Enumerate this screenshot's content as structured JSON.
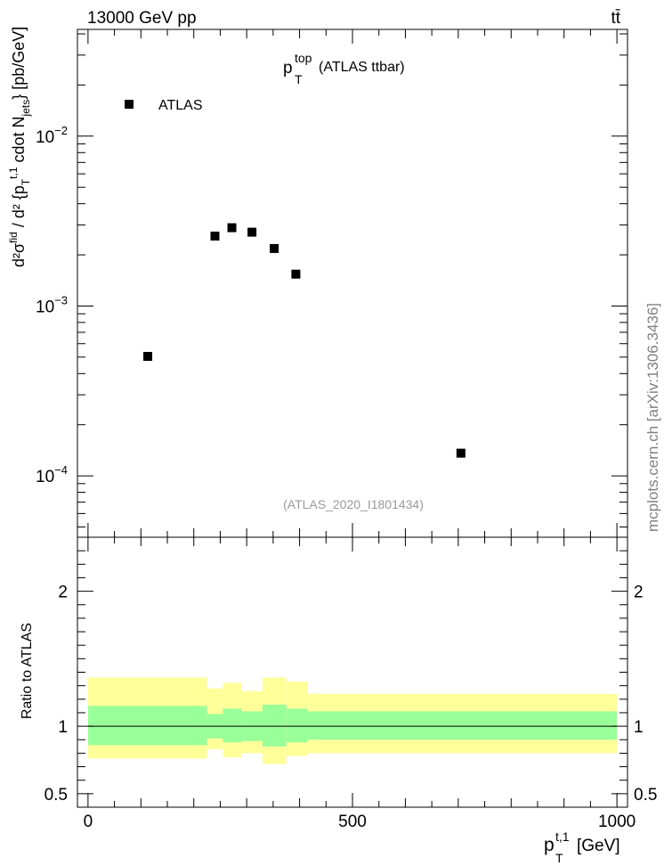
{
  "header": {
    "energy_label": "13000 GeV pp",
    "process_label": "tt̄"
  },
  "side_label": "mcplots.cern.ch [arXiv:1306.3436]",
  "chart_data": [
    {
      "type": "scatter",
      "panel": "main",
      "title_main": "p",
      "title_sup": "top",
      "title_sub": "T",
      "title_rest": "(ATLAS ttbar)",
      "analysis_id": "(ATLAS_2020_I1801434)",
      "ylabel": "d²σ^fid / d²{p_T^{t,1} cdot N_jets} [pb/GeV]",
      "y_scale": "log",
      "ylim": [
        4.35e-05,
        0.0425
      ],
      "xlim": [
        -20,
        1020
      ],
      "y_ticks": [
        {
          "value": 0.01,
          "base": "10",
          "exp": "−2"
        },
        {
          "value": 0.001,
          "base": "10",
          "exp": "−3"
        },
        {
          "value": 0.0001,
          "base": "10",
          "exp": "−4"
        }
      ],
      "legend": {
        "position": "top-left",
        "entries": [
          "ATLAS"
        ]
      },
      "series": [
        {
          "name": "ATLAS",
          "color": "#000000",
          "marker": "square",
          "points": [
            {
              "x": 113,
              "y": 0.000505
            },
            {
              "x": 240,
              "y": 0.00258
            },
            {
              "x": 272,
              "y": 0.00289
            },
            {
              "x": 310,
              "y": 0.00272
            },
            {
              "x": 352,
              "y": 0.00218
            },
            {
              "x": 393,
              "y": 0.00154
            },
            {
              "x": 705,
              "y": 0.000136
            }
          ]
        }
      ]
    },
    {
      "type": "area",
      "panel": "ratio",
      "ylabel": "Ratio to ATLAS",
      "xlabel_main": "p",
      "xlabel_sub": "T",
      "xlabel_sup": "t,1",
      "xlabel_unit": "[GeV]",
      "xlim": [
        -20,
        1020
      ],
      "ylim": [
        0.4,
        2.4
      ],
      "x_ticks": [
        0,
        500,
        1000
      ],
      "y_ticks": [
        0.5,
        1,
        2
      ],
      "reference_line": 1,
      "bands": [
        {
          "x0": 0,
          "x1": 225,
          "inner": [
            0.86,
            1.15
          ],
          "outer": [
            0.76,
            1.36
          ]
        },
        {
          "x0": 225,
          "x1": 255,
          "inner": [
            0.91,
            1.09
          ],
          "outer": [
            0.83,
            1.28
          ]
        },
        {
          "x0": 255,
          "x1": 290,
          "inner": [
            0.88,
            1.13
          ],
          "outer": [
            0.77,
            1.32
          ]
        },
        {
          "x0": 290,
          "x1": 330,
          "inner": [
            0.89,
            1.11
          ],
          "outer": [
            0.8,
            1.26
          ]
        },
        {
          "x0": 330,
          "x1": 375,
          "inner": [
            0.85,
            1.16
          ],
          "outer": [
            0.72,
            1.36
          ]
        },
        {
          "x0": 375,
          "x1": 415,
          "inner": [
            0.88,
            1.13
          ],
          "outer": [
            0.78,
            1.33
          ]
        },
        {
          "x0": 415,
          "x1": 1000,
          "inner": [
            0.9,
            1.11
          ],
          "outer": [
            0.8,
            1.24
          ]
        }
      ],
      "colors": {
        "inner": "#99ff99",
        "outer": "#ffff99",
        "line": "#000000"
      }
    }
  ]
}
